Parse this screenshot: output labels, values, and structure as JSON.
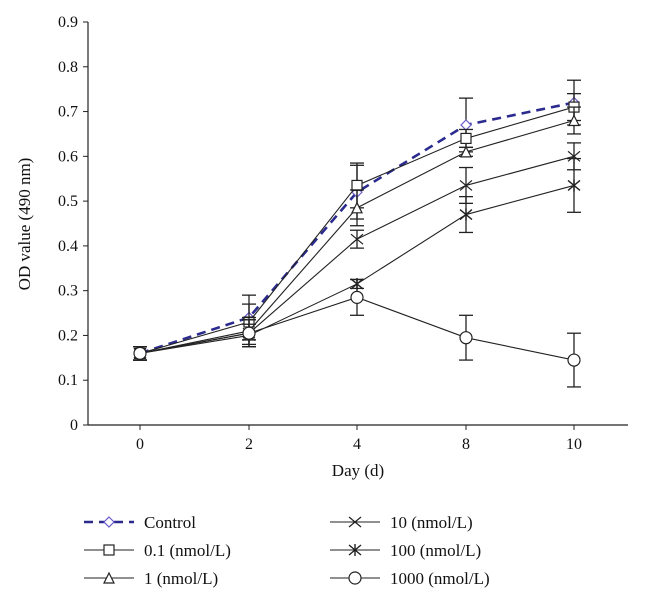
{
  "chart_data": {
    "type": "line",
    "title": "",
    "xlabel": "Day (d)",
    "ylabel": "OD value (490 nm)",
    "categories": [
      "0",
      "2",
      "4",
      "8",
      "10"
    ],
    "ylim": [
      0,
      0.9
    ],
    "yticks": [
      "0",
      "0.1",
      "0.2",
      "0.3",
      "0.4",
      "0.5",
      "0.6",
      "0.7",
      "0.8",
      "0.9"
    ],
    "grid": false,
    "legend_position": "bottom",
    "series": [
      {
        "name": "Control",
        "marker": "diamond",
        "color": "#2b2b8f",
        "dashed": true,
        "values": [
          0.16,
          0.24,
          0.52,
          0.67,
          0.72
        ],
        "errors": [
          0.015,
          0.05,
          0.06,
          0.06,
          0.05
        ]
      },
      {
        "name": "0.1 (nmol/L)",
        "marker": "square",
        "color": "#222222",
        "dashed": false,
        "values": [
          0.16,
          0.23,
          0.535,
          0.64,
          0.71
        ],
        "errors": [
          0.015,
          0.04,
          0.05,
          0.02,
          0.03
        ]
      },
      {
        "name": "1 (nmol/L)",
        "marker": "triangle",
        "color": "#222222",
        "dashed": false,
        "values": [
          0.16,
          0.21,
          0.485,
          0.61,
          0.68
        ],
        "errors": [
          0.015,
          0.03,
          0.04,
          0.01,
          0.03
        ]
      },
      {
        "name": "10 (nmol/L)",
        "marker": "x",
        "color": "#222222",
        "dashed": false,
        "values": [
          0.16,
          0.205,
          0.415,
          0.535,
          0.6
        ],
        "errors": [
          0.015,
          0.03,
          0.02,
          0.04,
          0.03
        ]
      },
      {
        "name": "100 (nmol/L)",
        "marker": "star",
        "color": "#222222",
        "dashed": false,
        "values": [
          0.16,
          0.2,
          0.315,
          0.47,
          0.535
        ],
        "errors": [
          0.015,
          0.025,
          0.01,
          0.04,
          0.06
        ]
      },
      {
        "name": "1000 (nmol/L)",
        "marker": "circle",
        "color": "#222222",
        "dashed": false,
        "values": [
          0.16,
          0.205,
          0.285,
          0.195,
          0.145
        ],
        "errors": [
          0.015,
          0.03,
          0.04,
          0.05,
          0.06
        ]
      }
    ]
  }
}
